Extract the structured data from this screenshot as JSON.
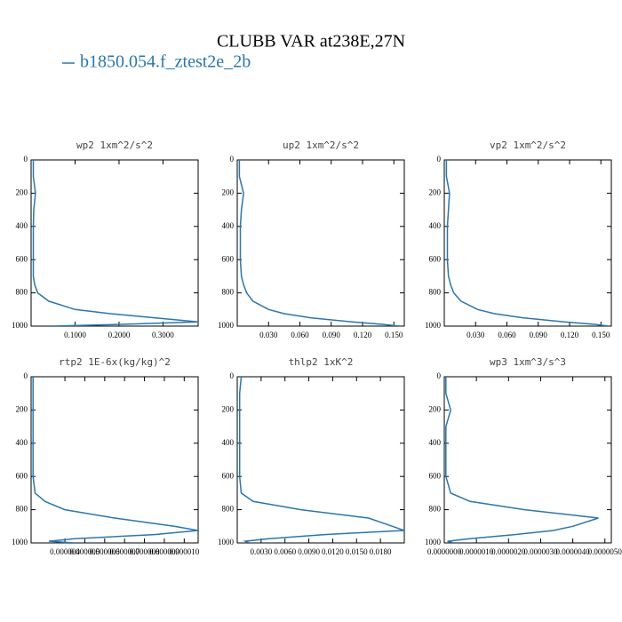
{
  "title": "CLUBB VAR at238E,27N",
  "series_name": "b1850.054.f_ztest2e_2b",
  "color": "#2a76ad",
  "chart_data": [
    {
      "type": "line",
      "title": "wp2  1xm^2/s^2",
      "levels": [
        0,
        100,
        200,
        300,
        400,
        500,
        600,
        700,
        750,
        800,
        850,
        900,
        925,
        950,
        975,
        990,
        1000
      ],
      "values": [
        0.005,
        0.005,
        0.01,
        0.006,
        0.005,
        0.005,
        0.005,
        0.005,
        0.008,
        0.015,
        0.04,
        0.1,
        0.18,
        0.28,
        0.38,
        0.2,
        0.05
      ],
      "xlim": [
        0,
        0.38
      ],
      "xticks": [
        {
          "value": 0.1,
          "label": "0.1000"
        },
        {
          "value": 0.2,
          "label": "0.2000"
        },
        {
          "value": 0.3,
          "label": "0.3000"
        }
      ],
      "ylim": [
        0,
        1000
      ],
      "yticks": [
        0,
        200,
        400,
        600,
        800,
        1000
      ]
    },
    {
      "type": "line",
      "title": "up2  1xm^2/s^2",
      "levels": [
        0,
        100,
        200,
        300,
        400,
        500,
        600,
        700,
        750,
        800,
        850,
        900,
        925,
        950,
        975,
        990,
        1000
      ],
      "values": [
        0.002,
        0.002,
        0.006,
        0.004,
        0.003,
        0.003,
        0.003,
        0.004,
        0.006,
        0.009,
        0.015,
        0.03,
        0.045,
        0.07,
        0.11,
        0.14,
        0.155
      ],
      "xlim": [
        0,
        0.16
      ],
      "xticks": [
        {
          "value": 0.03,
          "label": "0.030"
        },
        {
          "value": 0.06,
          "label": "0.060"
        },
        {
          "value": 0.09,
          "label": "0.090"
        },
        {
          "value": 0.12,
          "label": "0.120"
        },
        {
          "value": 0.15,
          "label": "0.150"
        }
      ],
      "ylim": [
        0,
        1000
      ],
      "yticks": [
        0,
        200,
        400,
        600,
        800,
        1000
      ]
    },
    {
      "type": "line",
      "title": "vp2  1xm^2/s^2",
      "levels": [
        0,
        100,
        200,
        300,
        400,
        500,
        600,
        700,
        750,
        800,
        850,
        900,
        925,
        950,
        975,
        990,
        1000
      ],
      "values": [
        0.002,
        0.002,
        0.005,
        0.004,
        0.003,
        0.003,
        0.003,
        0.004,
        0.006,
        0.009,
        0.016,
        0.032,
        0.048,
        0.075,
        0.115,
        0.145,
        0.157
      ],
      "xlim": [
        0,
        0.16
      ],
      "xticks": [
        {
          "value": 0.03,
          "label": "0.030"
        },
        {
          "value": 0.06,
          "label": "0.060"
        },
        {
          "value": 0.09,
          "label": "0.090"
        },
        {
          "value": 0.12,
          "label": "0.120"
        },
        {
          "value": 0.15,
          "label": "0.150"
        }
      ],
      "ylim": [
        0,
        1000
      ],
      "yticks": [
        0,
        200,
        400,
        600,
        800,
        1000
      ]
    },
    {
      "type": "line",
      "title": "rtp2  1E-6x(kg/kg)^2",
      "levels": [
        0,
        100,
        200,
        300,
        400,
        500,
        600,
        700,
        750,
        800,
        850,
        900,
        925,
        950,
        975,
        990,
        1000
      ],
      "values": [
        2.4e-06,
        2.4e-06,
        2.4e-06,
        2.4e-06,
        2.4e-06,
        2.4e-06,
        2.4e-06,
        2.5e-06,
        3e-06,
        4e-06,
        6.5e-06,
        9.5e-06,
        1.07e-05,
        8.5e-06,
        4.5e-06,
        3.2e-06,
        4.5e-06
      ],
      "xlim": [
        2.3e-06,
        1.07e-05
      ],
      "xticks": [
        {
          "value": 4e-06,
          "label": "0.000004"
        },
        {
          "value": 5e-06,
          "label": "0.000005"
        },
        {
          "value": 6e-06,
          "label": "0.000006"
        },
        {
          "value": 7e-06,
          "label": "0.000007"
        },
        {
          "value": 8e-06,
          "label": "0.000008"
        },
        {
          "value": 9e-06,
          "label": "0.000009"
        },
        {
          "value": 1e-05,
          "label": "0.000010"
        }
      ],
      "ylim": [
        0,
        1000
      ],
      "yticks": [
        0,
        200,
        400,
        600,
        800,
        1000
      ]
    },
    {
      "type": "line",
      "title": "thlp2  1xK^2",
      "levels": [
        0,
        100,
        200,
        300,
        400,
        500,
        600,
        700,
        750,
        800,
        850,
        900,
        925,
        950,
        975,
        990,
        1000
      ],
      "values": [
        0.0005,
        0.0003,
        0.0003,
        0.0003,
        0.0003,
        0.0003,
        0.0003,
        0.0005,
        0.002,
        0.008,
        0.0165,
        0.0195,
        0.021,
        0.011,
        0.004,
        0.001,
        0.0015
      ],
      "xlim": [
        0,
        0.021
      ],
      "xticks": [
        {
          "value": 0.003,
          "label": "0.0030"
        },
        {
          "value": 0.006,
          "label": "0.0060"
        },
        {
          "value": 0.009,
          "label": "0.0090"
        },
        {
          "value": 0.012,
          "label": "0.0120"
        },
        {
          "value": 0.015,
          "label": "0.0150"
        },
        {
          "value": 0.018,
          "label": "0.0180"
        }
      ],
      "ylim": [
        0,
        1000
      ],
      "yticks": [
        0,
        200,
        400,
        600,
        800,
        1000
      ]
    },
    {
      "type": "line",
      "title": "wp3  1xm^3/s^3",
      "levels": [
        0,
        100,
        200,
        300,
        400,
        500,
        600,
        700,
        750,
        800,
        850,
        900,
        925,
        950,
        975,
        990,
        1000
      ],
      "values": [
        5e-08,
        5e-08,
        2e-07,
        5e-08,
        5e-08,
        5e-08,
        5e-08,
        2e-07,
        8e-07,
        2.5e-06,
        4.8e-06,
        4e-06,
        3.4e-06,
        2.2e-06,
        8e-07,
        1e-07,
        3e-07
      ],
      "xlim": [
        0,
        5.2e-06
      ],
      "xticks": [
        {
          "value": 0,
          "label": "0.0000000"
        },
        {
          "value": 1e-06,
          "label": "0.0000010"
        },
        {
          "value": 2e-06,
          "label": "0.0000020"
        },
        {
          "value": 3e-06,
          "label": "0.0000030"
        },
        {
          "value": 4e-06,
          "label": "0.0000040"
        },
        {
          "value": 5e-06,
          "label": "0.0000050"
        }
      ],
      "ylim": [
        0,
        1000
      ],
      "yticks": [
        0,
        200,
        400,
        600,
        800,
        1000
      ]
    }
  ]
}
